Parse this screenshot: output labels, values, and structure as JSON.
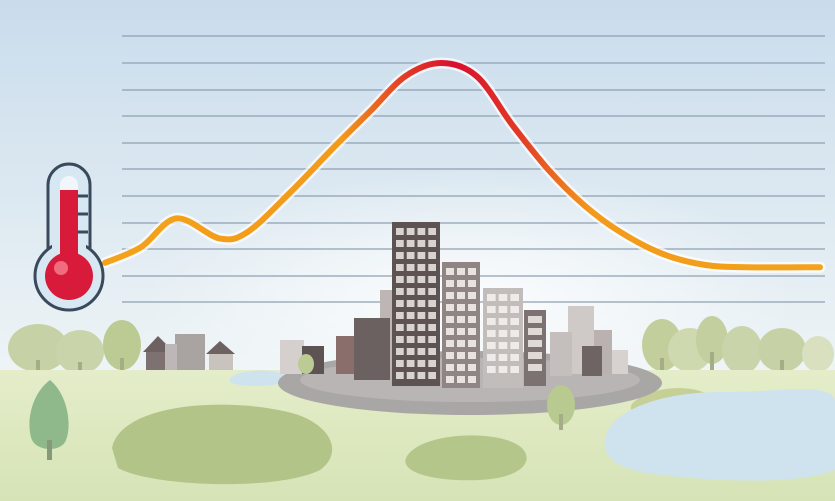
{
  "diagram": {
    "colors": {
      "sky_top": "#c9dcec",
      "sky_bottom": "#eef4f6",
      "grid_line": "#8fa0b2",
      "curve_cool": "#f3a21a",
      "curve_hot": "#d8102e",
      "curve_glow": "#fff2d0",
      "ground": "#dfe9c3",
      "grass_patch": "#b3c488",
      "tree": "#c1cf9c",
      "tree_dark": "#a9bf86",
      "pond": "#cfe3ee",
      "plaza": "#a9a6a6",
      "building_dark": "#5c5352",
      "building_mid": "#8f8584",
      "building_light": "#c2bcbb",
      "window": "#e8e3df",
      "house_roof": "#6d6261",
      "thermometer_red": "#d81b3a",
      "thermometer_glass": "#d7e8f3",
      "thermometer_outline": "#3a4a5c"
    },
    "icons": [
      "thermometer-icon",
      "tree-icon",
      "house-icon",
      "office-building-icon",
      "pond-icon"
    ],
    "temperature_profile": {
      "x": [
        0,
        0.05,
        0.1,
        0.16,
        0.2,
        0.26,
        0.32,
        0.37,
        0.42,
        0.47,
        0.52,
        0.57,
        0.62,
        0.67,
        0.72,
        0.78,
        0.84,
        0.9,
        1.0
      ],
      "temperature": [
        0.1,
        0.17,
        0.3,
        0.21,
        0.24,
        0.42,
        0.62,
        0.78,
        0.94,
        1.0,
        0.94,
        0.72,
        0.52,
        0.36,
        0.24,
        0.14,
        0.09,
        0.08,
        0.08
      ]
    }
  }
}
